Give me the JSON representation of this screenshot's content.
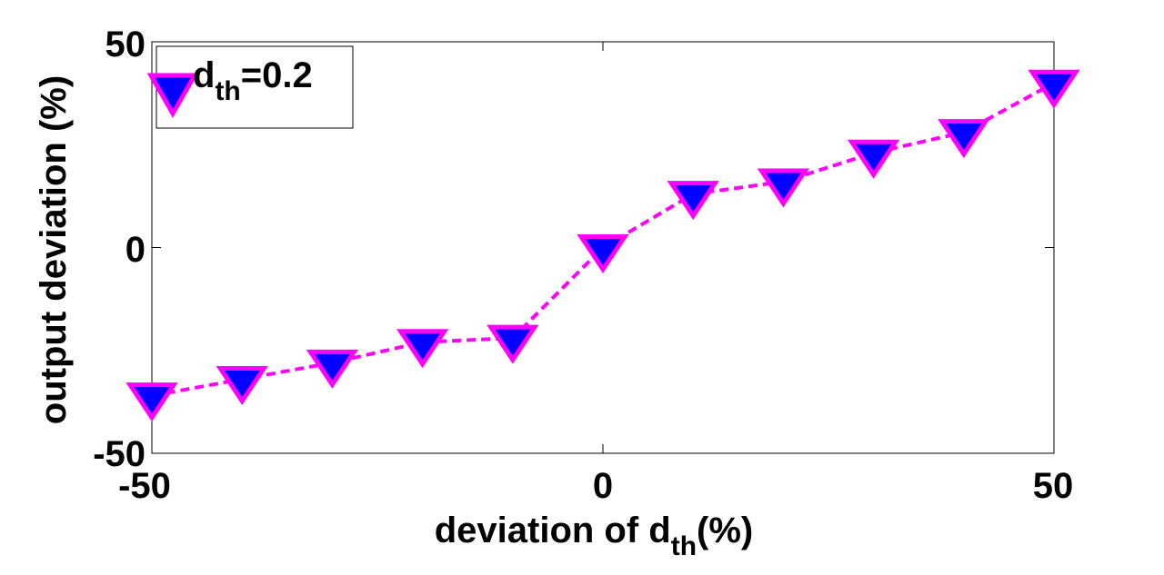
{
  "chart_data": {
    "type": "line",
    "xlabel": {
      "prefix": "deviation of d",
      "sub": "th",
      "suffix": "(%)"
    },
    "ylabel": "output deviation (%)",
    "xlim": [
      -50,
      50
    ],
    "ylim": [
      -50,
      50
    ],
    "xticks": [
      "-50",
      "0",
      "50"
    ],
    "yticks": [
      "50",
      "0",
      "-50"
    ],
    "grid": false,
    "legend": {
      "position": "top-left",
      "prefix": "d",
      "sub": "th",
      "suffix": "=0.2"
    },
    "series": [
      {
        "name": "d_th=0.2",
        "line_color": "#ff00ff",
        "marker_fill": "#0000ff",
        "marker_edge": "#ff00ff",
        "marker": "triangle-down",
        "line_style": "dashed",
        "x": [
          -50,
          -40,
          -30,
          -20,
          -10,
          0,
          10,
          20,
          30,
          40,
          50
        ],
        "y": [
          -36,
          -32,
          -28,
          -23,
          -22,
          0,
          13,
          16,
          23,
          28,
          40
        ]
      }
    ]
  }
}
